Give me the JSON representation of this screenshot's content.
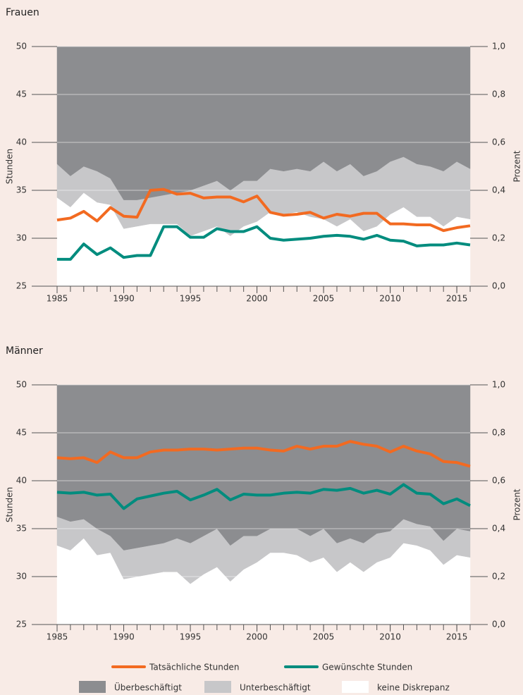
{
  "chart_data": [
    {
      "type": "line",
      "title": "Frauen",
      "y_label": "Stunden",
      "y2_label": "Prozent",
      "x": [
        1985,
        1986,
        1987,
        1988,
        1989,
        1990,
        1991,
        1992,
        1993,
        1994,
        1995,
        1996,
        1997,
        1998,
        1999,
        2000,
        2001,
        2002,
        2003,
        2004,
        2005,
        2006,
        2007,
        2008,
        2009,
        2010,
        2011,
        2012,
        2013,
        2014,
        2015,
        2016
      ],
      "xlim": [
        1985,
        2016
      ],
      "xticks": [
        1985,
        1990,
        1995,
        2000,
        2005,
        2010,
        2015
      ],
      "ylim": [
        25,
        50
      ],
      "yticks": [
        25,
        30,
        35,
        40,
        45,
        50
      ],
      "y2lim": [
        0,
        1
      ],
      "y2ticks": [
        {
          "value": 0,
          "label": "0,0"
        },
        {
          "value": 0.2,
          "label": "0,2"
        },
        {
          "value": 0.4,
          "label": "0,4"
        },
        {
          "value": 0.6,
          "label": "0,6"
        },
        {
          "value": 0.8,
          "label": "0,8"
        },
        {
          "value": 1,
          "label": "1,0"
        }
      ],
      "grid": true,
      "series": [
        {
          "name": "keine Diskrepanz",
          "type": "area",
          "axis": "y2",
          "color": "#ffffff",
          "values": [
            0.37,
            0.33,
            0.39,
            0.35,
            0.34,
            0.24,
            0.25,
            0.26,
            0.26,
            0.26,
            0.21,
            0.23,
            0.25,
            0.21,
            0.25,
            0.27,
            0.31,
            0.3,
            0.31,
            0.29,
            0.28,
            0.25,
            0.28,
            0.23,
            0.25,
            0.3,
            0.33,
            0.29,
            0.29,
            0.25,
            0.29,
            0.28
          ]
        },
        {
          "name": "Unterbeschäftigt",
          "type": "area",
          "axis": "y2",
          "color": "#c7c7c9",
          "values": [
            0.14,
            0.13,
            0.11,
            0.13,
            0.11,
            0.12,
            0.11,
            0.11,
            0.12,
            0.13,
            0.19,
            0.19,
            0.19,
            0.19,
            0.19,
            0.17,
            0.18,
            0.18,
            0.18,
            0.19,
            0.24,
            0.23,
            0.23,
            0.23,
            0.23,
            0.22,
            0.21,
            0.22,
            0.21,
            0.23,
            0.23,
            0.21
          ]
        },
        {
          "name": "Überbeschäftigt",
          "type": "area",
          "axis": "y2",
          "color": "#8c8d90",
          "values": [
            0.49,
            0.54,
            0.5,
            0.52,
            0.55,
            0.64,
            0.64,
            0.63,
            0.62,
            0.61,
            0.6,
            0.58,
            0.56,
            0.6,
            0.56,
            0.56,
            0.51,
            0.52,
            0.51,
            0.52,
            0.48,
            0.52,
            0.49,
            0.54,
            0.52,
            0.48,
            0.46,
            0.49,
            0.5,
            0.52,
            0.48,
            0.51
          ]
        },
        {
          "name": "Tatsächliche Stunden",
          "type": "line",
          "color": "#f26a21",
          "values": [
            31.9,
            32.1,
            32.8,
            31.8,
            33.2,
            32.3,
            32.2,
            35.0,
            35.1,
            34.6,
            34.7,
            34.2,
            34.3,
            34.3,
            33.8,
            34.4,
            32.7,
            32.4,
            32.5,
            32.7,
            32.1,
            32.5,
            32.3,
            32.6,
            32.6,
            31.5,
            31.5,
            31.4,
            31.4,
            30.8,
            31.1,
            31.3
          ]
        },
        {
          "name": "Gewünschte Stunden",
          "type": "line",
          "color": "#008c7e",
          "values": [
            27.8,
            27.8,
            29.4,
            28.3,
            29.0,
            28.0,
            28.2,
            28.2,
            31.2,
            31.2,
            30.1,
            30.1,
            31.0,
            30.7,
            30.7,
            31.2,
            30.0,
            29.8,
            29.9,
            30.0,
            30.2,
            30.3,
            30.2,
            29.9,
            30.3,
            29.8,
            29.7,
            29.2,
            29.3,
            29.3,
            29.5,
            29.3
          ]
        }
      ]
    },
    {
      "type": "line",
      "title": "Männer",
      "y_label": "Stunden",
      "y2_label": "Prozent",
      "x": [
        1985,
        1986,
        1987,
        1988,
        1989,
        1990,
        1991,
        1992,
        1993,
        1994,
        1995,
        1996,
        1997,
        1998,
        1999,
        2000,
        2001,
        2002,
        2003,
        2004,
        2005,
        2006,
        2007,
        2008,
        2009,
        2010,
        2011,
        2012,
        2013,
        2014,
        2015,
        2016
      ],
      "xlim": [
        1985,
        2016
      ],
      "xticks": [
        1985,
        1990,
        1995,
        2000,
        2005,
        2010,
        2015
      ],
      "ylim": [
        25,
        50
      ],
      "yticks": [
        25,
        30,
        35,
        40,
        45,
        50
      ],
      "y2lim": [
        0,
        1
      ],
      "y2ticks": [
        {
          "value": 0,
          "label": "0,0"
        },
        {
          "value": 0.2,
          "label": "0,2"
        },
        {
          "value": 0.4,
          "label": "0,4"
        },
        {
          "value": 0.6,
          "label": "0,6"
        },
        {
          "value": 0.8,
          "label": "0,8"
        },
        {
          "value": 1,
          "label": "1,0"
        }
      ],
      "grid": true,
      "series": [
        {
          "type": "area",
          "axis": "y2",
          "color": "#ffffff",
          "values": [
            0.33,
            0.31,
            0.36,
            0.29,
            0.3,
            0.19,
            0.2,
            0.21,
            0.22,
            0.22,
            0.17,
            0.21,
            0.24,
            0.18,
            0.23,
            0.26,
            0.3,
            0.3,
            0.29,
            0.26,
            0.28,
            0.22,
            0.26,
            0.22,
            0.26,
            0.28,
            0.34,
            0.33,
            0.31,
            0.25,
            0.29,
            0.28
          ]
        },
        {
          "type": "area",
          "axis": "y2",
          "color": "#c7c7c9",
          "values": [
            0.12,
            0.12,
            0.08,
            0.11,
            0.07,
            0.12,
            0.12,
            0.12,
            0.12,
            0.14,
            0.17,
            0.16,
            0.16,
            0.15,
            0.14,
            0.11,
            0.1,
            0.1,
            0.11,
            0.11,
            0.12,
            0.12,
            0.1,
            0.12,
            0.12,
            0.11,
            0.1,
            0.09,
            0.1,
            0.1,
            0.11,
            0.11
          ]
        },
        {
          "type": "area",
          "axis": "y2",
          "color": "#8c8d90",
          "values": [
            0.55,
            0.57,
            0.56,
            0.6,
            0.63,
            0.69,
            0.68,
            0.67,
            0.66,
            0.64,
            0.66,
            0.63,
            0.6,
            0.67,
            0.63,
            0.63,
            0.6,
            0.6,
            0.6,
            0.63,
            0.6,
            0.66,
            0.64,
            0.66,
            0.62,
            0.61,
            0.56,
            0.58,
            0.59,
            0.65,
            0.6,
            0.61
          ]
        },
        {
          "type": "line",
          "color": "#f26a21",
          "values": [
            42.4,
            42.3,
            42.4,
            41.9,
            43.0,
            42.4,
            42.4,
            43.0,
            43.2,
            43.2,
            43.3,
            43.3,
            43.2,
            43.3,
            43.4,
            43.4,
            43.2,
            43.1,
            43.6,
            43.3,
            43.6,
            43.6,
            44.1,
            43.8,
            43.6,
            43.0,
            43.6,
            43.1,
            42.8,
            42.0,
            41.9,
            41.5
          ]
        },
        {
          "type": "line",
          "color": "#008c7e",
          "values": [
            38.8,
            38.7,
            38.8,
            38.5,
            38.6,
            37.1,
            38.1,
            38.4,
            38.7,
            38.9,
            38.0,
            38.5,
            39.1,
            38.0,
            38.6,
            38.5,
            38.5,
            38.7,
            38.8,
            38.7,
            39.1,
            39.0,
            39.2,
            38.7,
            39.0,
            38.6,
            39.6,
            38.7,
            38.6,
            37.6,
            38.1,
            37.4
          ]
        }
      ]
    }
  ]
}
